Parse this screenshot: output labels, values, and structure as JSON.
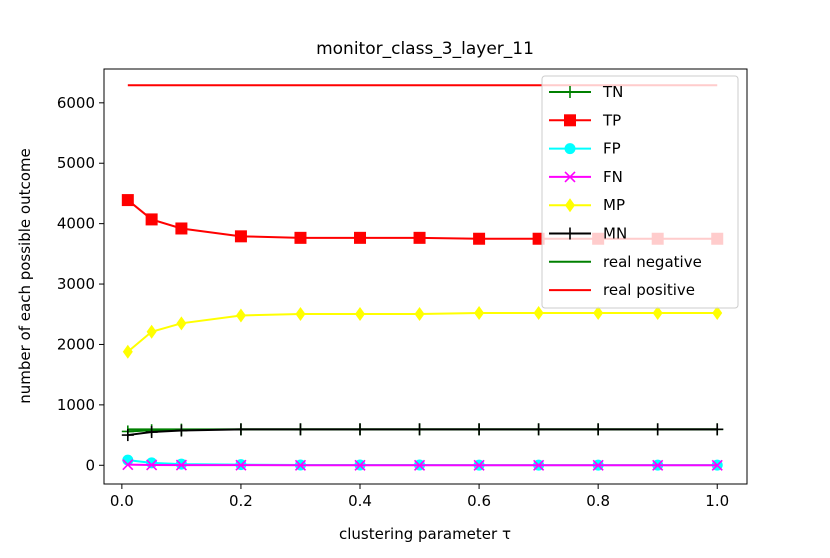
{
  "chart_data": {
    "type": "line",
    "title": "monitor_class_3_layer_11",
    "xlabel": "clustering parameter τ",
    "ylabel": "number of each possible outcome",
    "xlim": [
      -0.03,
      1.05
    ],
    "ylim": [
      -310,
      6560
    ],
    "xticks": [
      0.0,
      0.2,
      0.4,
      0.6,
      0.8,
      1.0
    ],
    "xtick_labels": [
      "0.0",
      "0.2",
      "0.4",
      "0.6",
      "0.8",
      "1.0"
    ],
    "yticks": [
      0,
      1000,
      2000,
      3000,
      4000,
      5000,
      6000
    ],
    "ytick_labels": [
      "0",
      "1000",
      "2000",
      "3000",
      "4000",
      "5000",
      "6000"
    ],
    "legend_position": "upper right",
    "x": [
      0.01,
      0.05,
      0.1,
      0.2,
      0.3,
      0.4,
      0.5,
      0.6,
      0.7,
      0.8,
      0.9,
      1.0
    ],
    "series": [
      {
        "name": "TN",
        "color": "#008000",
        "marker": "plus",
        "values": [
          560,
          580,
          590,
          595,
          595,
          595,
          595,
          595,
          595,
          595,
          595,
          595
        ]
      },
      {
        "name": "TP",
        "color": "#ff0000",
        "marker": "square",
        "values": [
          4390,
          4070,
          3920,
          3790,
          3765,
          3765,
          3765,
          3750,
          3750,
          3750,
          3750,
          3750
        ]
      },
      {
        "name": "FP",
        "color": "#00ffff",
        "marker": "circle",
        "values": [
          85,
          40,
          20,
          10,
          5,
          5,
          5,
          3,
          3,
          3,
          3,
          3
        ]
      },
      {
        "name": "FN",
        "color": "#ff00ff",
        "marker": "x",
        "values": [
          10,
          5,
          3,
          2,
          0,
          0,
          0,
          0,
          0,
          0,
          0,
          0
        ]
      },
      {
        "name": "MP",
        "color": "#ffff00",
        "marker": "diamond",
        "values": [
          1880,
          2210,
          2350,
          2480,
          2505,
          2505,
          2505,
          2520,
          2520,
          2520,
          2520,
          2520
        ]
      },
      {
        "name": "MN",
        "color": "#000000",
        "marker": "plus",
        "values": [
          500,
          550,
          575,
          595,
          595,
          595,
          595,
          595,
          595,
          595,
          595,
          595
        ]
      },
      {
        "name": "real negative",
        "color": "#008000",
        "marker": "none",
        "values": [
          595,
          595,
          595,
          595,
          595,
          595,
          595,
          595,
          595,
          595,
          595,
          595
        ]
      },
      {
        "name": "real positive",
        "color": "#ff0000",
        "marker": "none",
        "values": [
          6290,
          6290,
          6290,
          6290,
          6290,
          6290,
          6290,
          6290,
          6290,
          6290,
          6290,
          6290
        ]
      }
    ]
  }
}
